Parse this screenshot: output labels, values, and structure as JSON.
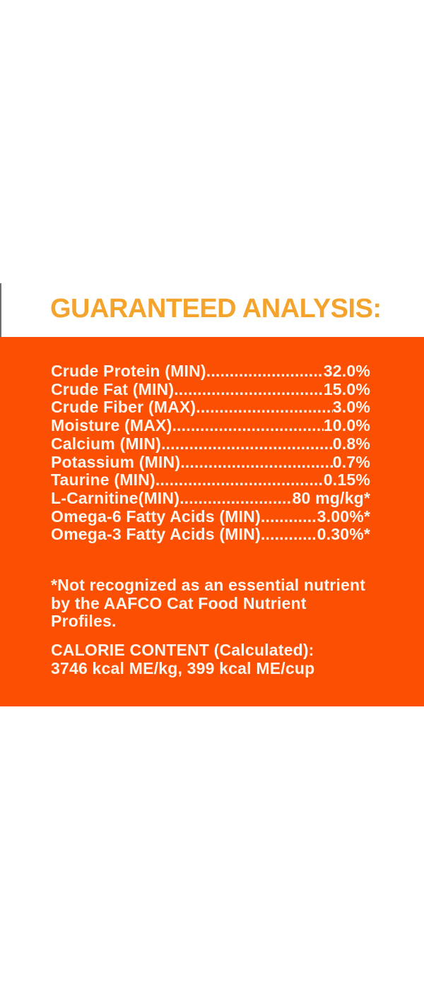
{
  "heading": {
    "text": "GUARANTEED ANALYSIS:"
  },
  "analysis": {
    "rows": [
      {
        "label": "Crude Protein (MIN)",
        "value": "32.0%"
      },
      {
        "label": "Crude Fat (MIN)",
        "value": "15.0%"
      },
      {
        "label": "Crude Fiber (MAX)",
        "value": "3.0%"
      },
      {
        "label": "Moisture (MAX)",
        "value": "10.0%"
      },
      {
        "label": "Calcium (MIN)",
        "value": "0.8%"
      },
      {
        "label": "Potassium (MIN)",
        "value": "0.7%"
      },
      {
        "label": "Taurine (MIN)",
        "value": "0.15%"
      },
      {
        "label": "L-Carnitine(MIN)",
        "value": "80 mg/kg*"
      },
      {
        "label": "Omega-6 Fatty Acids (MIN)",
        "value": "3.00%*"
      },
      {
        "label": "Omega-3 Fatty Acids (MIN)",
        "value": "0.30%*"
      }
    ]
  },
  "footnote": {
    "line1": "*Not recognized as an essential nutrient",
    "line2": "by the AAFCO Cat Food Nutrient Profiles."
  },
  "calories": {
    "title": "CALORIE CONTENT (Calculated):",
    "values": "3746 kcal ME/kg, 399 kcal ME/cup"
  },
  "colors": {
    "page_background": "#FFFFFF",
    "heading_text": "#F4A42D",
    "panel_background": "#FB4F03",
    "panel_text": "#FFF5EC",
    "edge_mark": "#6E6E6E"
  }
}
